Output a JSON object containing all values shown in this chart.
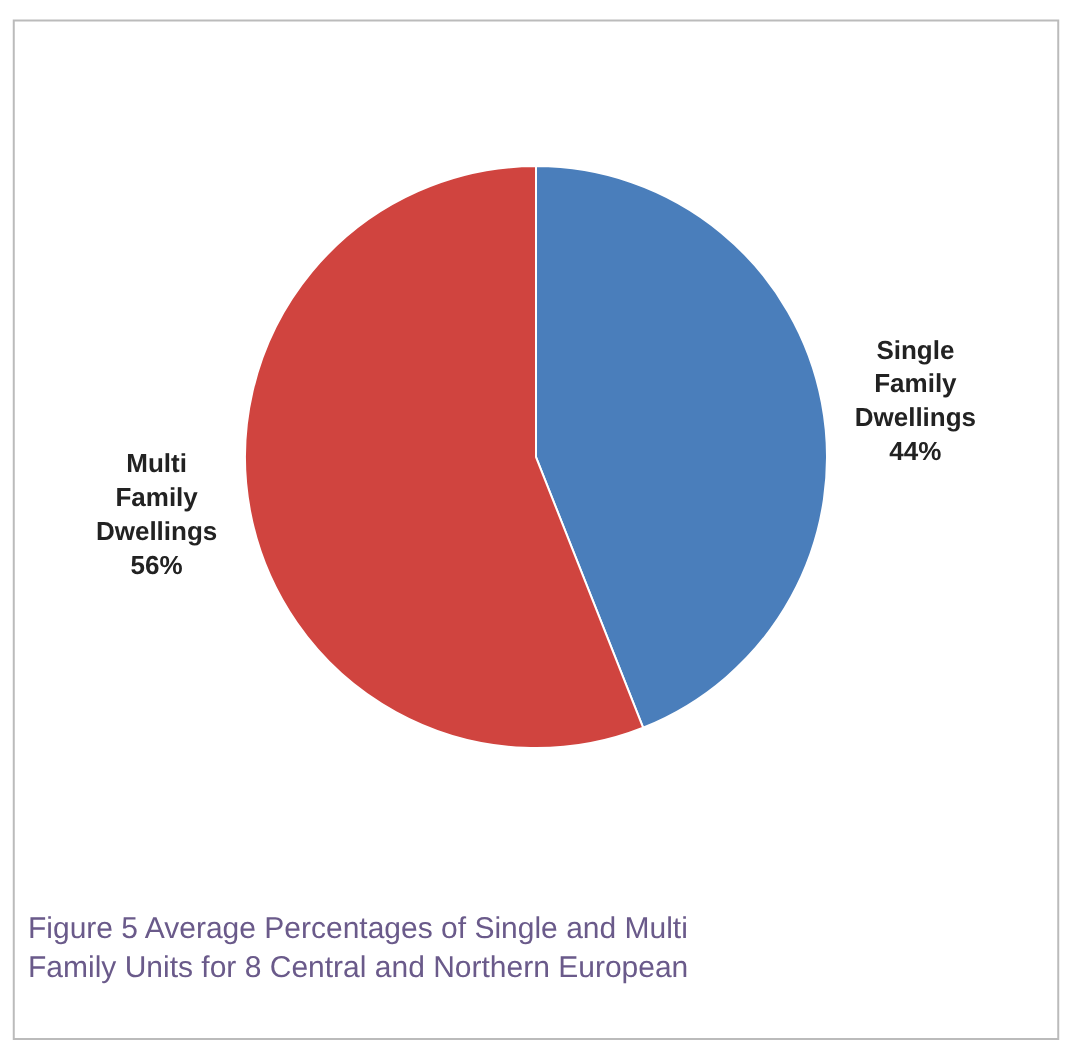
{
  "chart_data": {
    "type": "pie",
    "categories": [
      "Single\nFamily\nDwellings",
      "Multi\nFamily\nDwellings"
    ],
    "values": [
      44,
      56
    ],
    "colors": [
      "#4a7ebb",
      "#d0443f"
    ],
    "value_labels": [
      "44%",
      "56%"
    ],
    "legend": false,
    "annotations": [
      "Figure 5 Average Percentages of Single and Multi\nFamily Units for 8 Central and Northern European"
    ]
  }
}
